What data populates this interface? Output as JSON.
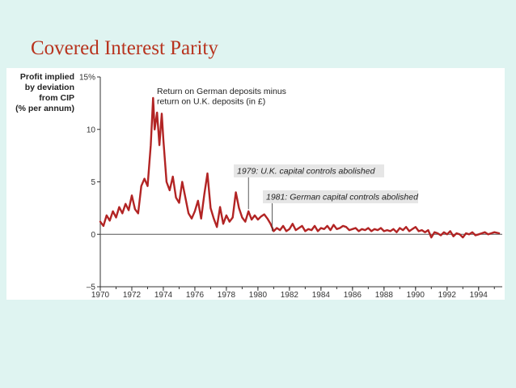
{
  "slide": {
    "title": "Covered Interest Parity"
  },
  "colors": {
    "background": "#dff4f1",
    "title": "#b8341f",
    "series": "#b22424",
    "callout_box": "#e6e6e6"
  },
  "chart_data": {
    "type": "line",
    "ylabel_lines": [
      "Profit implied",
      "by deviation",
      "from CIP",
      "(% per annum)"
    ],
    "xlabel": "",
    "xlim": [
      1970,
      1995.5
    ],
    "ylim": [
      -5,
      15
    ],
    "x_ticks": [
      1970,
      1972,
      1974,
      1976,
      1978,
      1980,
      1982,
      1984,
      1986,
      1988,
      1990,
      1992,
      1994
    ],
    "x_tick_labels": [
      "1970",
      "1972",
      "1974",
      "1976",
      "1978",
      "1980",
      "1982",
      "1984",
      "1986",
      "1988",
      "1990",
      "1992",
      "1994"
    ],
    "y_ticks": [
      -5,
      0,
      5,
      10,
      15
    ],
    "y_tick_labels": [
      "–5",
      "0",
      "5",
      "10",
      "15%"
    ],
    "reference_line": 0,
    "grid": false,
    "legend": "none",
    "annotations": [
      {
        "lines": [
          "Return on German deposits minus",
          "return on U.K. deposits (in £)"
        ],
        "boxed": false,
        "x": 1973.3,
        "y": 13.0
      },
      {
        "lines": [
          "1979: U.K. capital controls abolished"
        ],
        "boxed": true,
        "x": 1979.4,
        "y": 2.4
      },
      {
        "lines": [
          "1981: German capital controls abolished"
        ],
        "boxed": true,
        "x": 1980.9,
        "y": 0.3
      }
    ],
    "series": [
      {
        "x": [
          1970.0,
          1970.2,
          1970.4,
          1970.6,
          1970.8,
          1971.0,
          1971.2,
          1971.4,
          1971.6,
          1971.8,
          1972.0,
          1972.2,
          1972.4,
          1972.6,
          1972.8,
          1973.0,
          1973.2,
          1973.35,
          1973.45,
          1973.6,
          1973.75,
          1973.9,
          1974.0,
          1974.2,
          1974.4,
          1974.6,
          1974.8,
          1975.0,
          1975.2,
          1975.4,
          1975.6,
          1975.8,
          1976.0,
          1976.2,
          1976.4,
          1976.6,
          1976.8,
          1977.0,
          1977.2,
          1977.4,
          1977.6,
          1977.8,
          1978.0,
          1978.2,
          1978.4,
          1978.6,
          1978.8,
          1979.0,
          1979.2,
          1979.4,
          1979.6,
          1979.8,
          1980.0,
          1980.2,
          1980.4,
          1980.6,
          1980.8,
          1981.0,
          1981.2,
          1981.4,
          1981.6,
          1981.8,
          1982.0,
          1982.2,
          1982.4,
          1982.6,
          1982.8,
          1983.0,
          1983.2,
          1983.4,
          1983.6,
          1983.8,
          1984.0,
          1984.2,
          1984.4,
          1984.6,
          1984.8,
          1985.0,
          1985.2,
          1985.4,
          1985.6,
          1985.8,
          1986.0,
          1986.2,
          1986.4,
          1986.6,
          1986.8,
          1987.0,
          1987.2,
          1987.4,
          1987.6,
          1987.8,
          1988.0,
          1988.2,
          1988.4,
          1988.6,
          1988.8,
          1989.0,
          1989.2,
          1989.4,
          1989.6,
          1989.8,
          1990.0,
          1990.2,
          1990.4,
          1990.6,
          1990.8,
          1991.0,
          1991.2,
          1991.4,
          1991.6,
          1991.8,
          1992.0,
          1992.2,
          1992.4,
          1992.6,
          1992.8,
          1993.0,
          1993.2,
          1993.4,
          1993.6,
          1993.8,
          1994.0,
          1994.2,
          1994.4,
          1994.6,
          1994.8,
          1995.0,
          1995.3
        ],
        "values": [
          1.2,
          0.8,
          1.8,
          1.3,
          2.2,
          1.6,
          2.6,
          2.0,
          2.9,
          2.3,
          3.7,
          2.4,
          2.0,
          4.6,
          5.3,
          4.6,
          8.5,
          13.0,
          10.0,
          11.6,
          8.5,
          11.5,
          9.0,
          5.0,
          4.2,
          5.5,
          3.5,
          3.0,
          5.0,
          3.5,
          2.0,
          1.5,
          2.2,
          3.2,
          1.5,
          3.8,
          5.8,
          2.5,
          1.5,
          0.7,
          2.6,
          1.0,
          1.8,
          1.2,
          1.6,
          4.0,
          2.5,
          1.6,
          1.2,
          2.2,
          1.4,
          1.8,
          1.4,
          1.7,
          1.9,
          1.5,
          1.0,
          0.3,
          0.6,
          0.4,
          0.8,
          0.3,
          0.5,
          1.0,
          0.4,
          0.6,
          0.8,
          0.3,
          0.5,
          0.4,
          0.8,
          0.3,
          0.6,
          0.5,
          0.8,
          0.4,
          0.9,
          0.5,
          0.6,
          0.8,
          0.7,
          0.4,
          0.5,
          0.6,
          0.3,
          0.5,
          0.4,
          0.6,
          0.3,
          0.5,
          0.4,
          0.6,
          0.3,
          0.4,
          0.3,
          0.5,
          0.2,
          0.6,
          0.4,
          0.7,
          0.3,
          0.5,
          0.7,
          0.3,
          0.4,
          0.2,
          0.4,
          -0.3,
          0.2,
          0.1,
          -0.1,
          0.2,
          0.0,
          0.3,
          -0.2,
          0.1,
          0.0,
          -0.3,
          0.1,
          0.0,
          0.2,
          -0.1,
          0.0,
          0.1,
          0.2,
          0.0,
          0.1,
          0.2,
          0.1
        ]
      }
    ]
  }
}
